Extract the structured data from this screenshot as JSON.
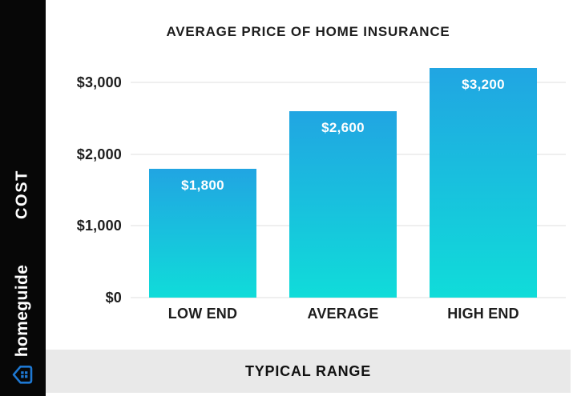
{
  "sidebar": {
    "cost_label": "COST",
    "brand": {
      "name": "homeguide",
      "icon": "homeguide-house-icon",
      "icon_color": "#1e78d2"
    },
    "bg_color": "#070707",
    "text_color": "#ffffff"
  },
  "footer": {
    "label": "TYPICAL RANGE",
    "bg_color": "#e9e9e9"
  },
  "chart_data": {
    "type": "bar",
    "title": "AVERAGE PRICE OF HOME INSURANCE",
    "categories": [
      "LOW END",
      "AVERAGE",
      "HIGH END"
    ],
    "values": [
      1800,
      2600,
      3200
    ],
    "value_labels": [
      "$1,800",
      "$2,600",
      "$3,200"
    ],
    "yticks": [
      {
        "value": 0,
        "label": "$0"
      },
      {
        "value": 1000,
        "label": "$1,000"
      },
      {
        "value": 2000,
        "label": "$2,000"
      },
      {
        "value": 3000,
        "label": "$3,000"
      }
    ],
    "ylim": [
      0,
      3200
    ],
    "ylabel": "COST",
    "xlabel": "TYPICAL RANGE",
    "grid": true,
    "legend": false,
    "bar_gradient_top": "#21a5e2",
    "bar_gradient_bottom": "#10dcd9",
    "value_label_color": "#ffffff",
    "gridline_color": "#efefef"
  }
}
